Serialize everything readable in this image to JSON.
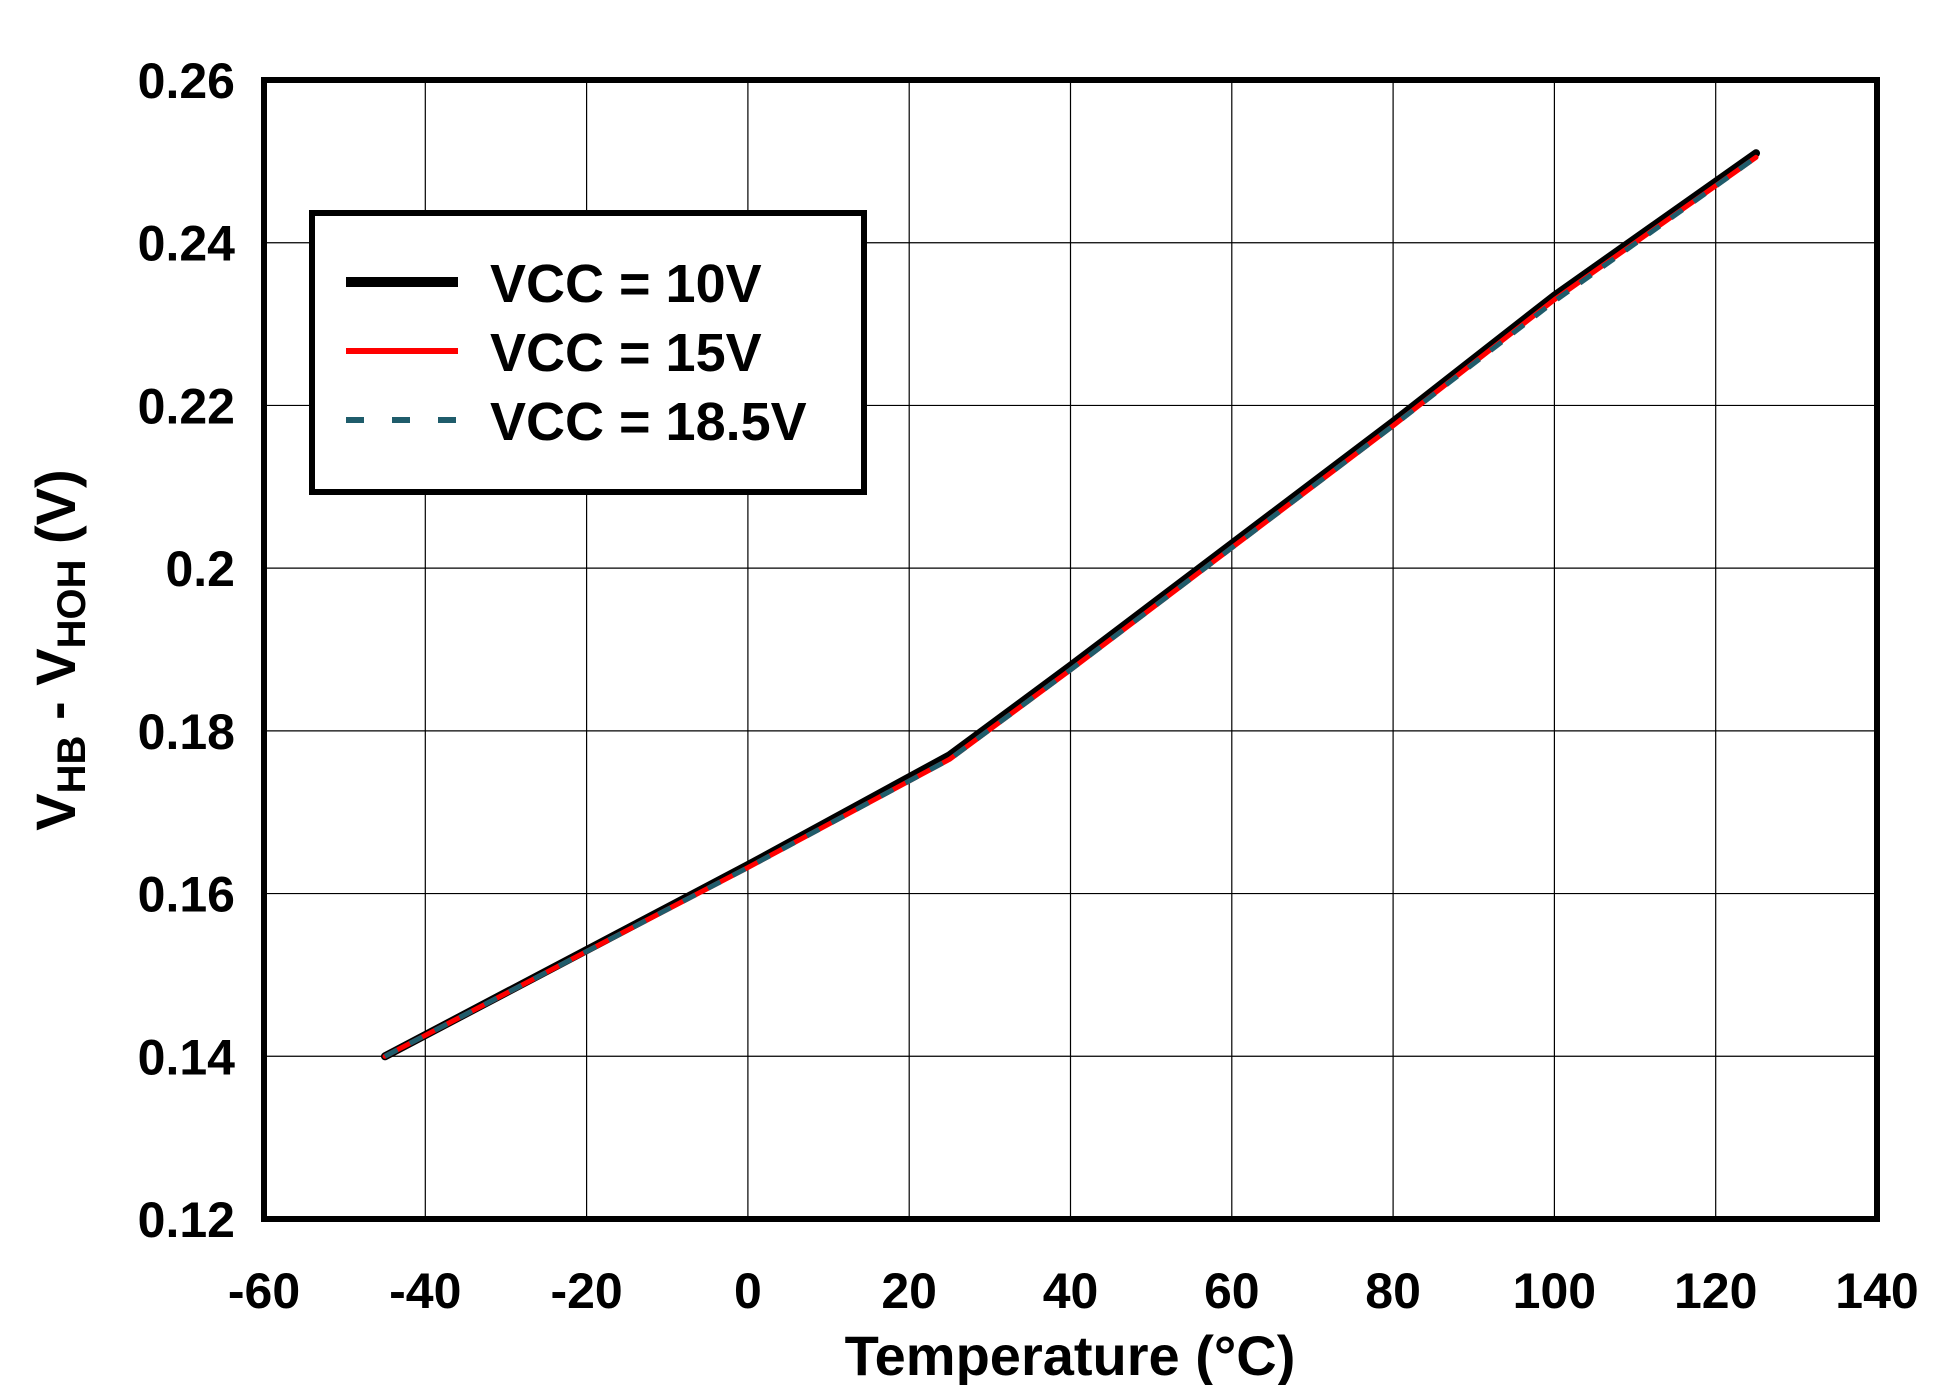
{
  "chart_data": {
    "type": "line",
    "title": "",
    "xlabel": "Temperature (°C)",
    "ylabel": {
      "main": "V",
      "sub1": "HB",
      "mid": " - V",
      "sub2": "HOH",
      "unit": " (V)"
    },
    "xlim": [
      -60,
      140
    ],
    "ylim": [
      0.12,
      0.26
    ],
    "xticks": [
      -60,
      -40,
      -20,
      0,
      20,
      40,
      60,
      80,
      100,
      120,
      140
    ],
    "yticks": [
      0.12,
      0.14,
      0.16,
      0.18,
      0.2,
      0.22,
      0.24,
      0.26
    ],
    "ytick_labels": [
      "0.12",
      "0.14",
      "0.16",
      "0.18",
      "0.2",
      "0.22",
      "0.24",
      "0.26"
    ],
    "grid": true,
    "legend_position": "top-left",
    "series": [
      {
        "name": "VCC = 10V",
        "color": "#000000",
        "style": "solid",
        "x": [
          -45,
          0,
          25,
          40,
          60,
          80,
          100,
          125
        ],
        "y": [
          0.14,
          0.1635,
          0.177,
          0.188,
          0.203,
          0.218,
          0.2335,
          0.251
        ]
      },
      {
        "name": "VCC = 15V",
        "color": "#ff0000",
        "style": "solid",
        "x": [
          -45,
          0,
          25,
          40,
          60,
          80,
          100,
          125
        ],
        "y": [
          0.14,
          0.1632,
          0.1765,
          0.1875,
          0.2025,
          0.2175,
          0.233,
          0.2505
        ]
      },
      {
        "name": "VCC = 18.5V",
        "color": "#1f5c6b",
        "style": "dashed",
        "x": [
          -45,
          0,
          25,
          40,
          60,
          80,
          100,
          125
        ],
        "y": [
          0.14,
          0.1632,
          0.1765,
          0.1875,
          0.2025,
          0.2175,
          0.2328,
          0.2505
        ]
      }
    ]
  }
}
